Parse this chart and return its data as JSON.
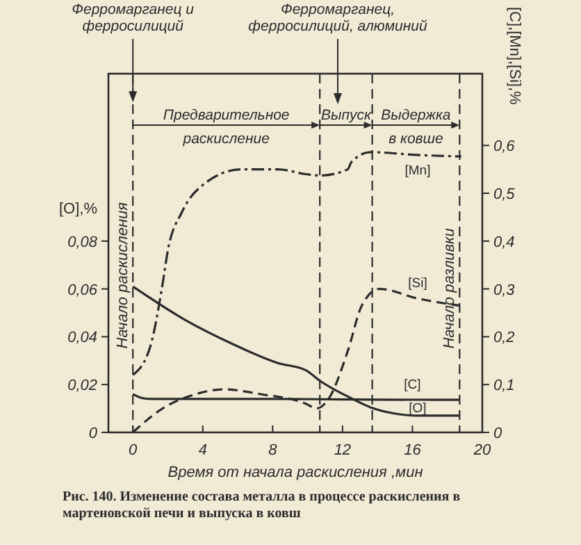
{
  "chart_data": {
    "type": "line",
    "xlabel": "Время от начала раскисления ,мин",
    "ylabel": "[O],%",
    "y2label": "[C],[Mn],[Si],%",
    "xlim": [
      -1.4,
      20
    ],
    "xticks": [
      0,
      4,
      8,
      12,
      16,
      20
    ],
    "ylim": [
      0,
      0.15
    ],
    "yticks": [
      0,
      {
        "value": 0.02,
        "label": "0,02"
      },
      {
        "value": 0.04,
        "label": "0,04"
      },
      {
        "value": 0.06,
        "label": "0,06"
      },
      {
        "value": 0.08,
        "label": "0,08"
      }
    ],
    "y2lim": [
      0,
      0.75
    ],
    "y2ticks": [
      0,
      {
        "value": 0.1,
        "label": "0,1"
      },
      {
        "value": 0.2,
        "label": "0,2"
      },
      {
        "value": 0.3,
        "label": "0,3"
      },
      {
        "value": 0.4,
        "label": "0,4"
      },
      {
        "value": 0.5,
        "label": "0,5"
      },
      {
        "value": 0.6,
        "label": "0,6"
      }
    ],
    "series": [
      {
        "name": "[Mn]",
        "color": "#2b2b2b",
        "axis": "y2",
        "line_style": "dashdot",
        "x": [
          0,
          1,
          1.7,
          2,
          2.8,
          4.1,
          6.2,
          7.3,
          8.3,
          9.9,
          10.7,
          12.3,
          12.5,
          13.6,
          16.3,
          18.8
        ],
        "values": [
          0.12,
          0.18,
          0.31,
          0.38,
          0.46,
          0.52,
          0.55,
          0.55,
          0.55,
          0.54,
          0.537,
          0.55,
          0.565,
          0.586,
          0.58,
          0.577
        ]
      },
      {
        "name": "[Si]",
        "color": "#2b2b2b",
        "axis": "y2",
        "line_style": "dashed",
        "x": [
          0,
          1.7,
          3.6,
          5.2,
          7.3,
          9.9,
          10.5,
          11.2,
          12.3,
          13.1,
          14.1,
          16.3,
          18.7
        ],
        "values": [
          0,
          0.05,
          0.08,
          0.09,
          0.08,
          0.06,
          0.05,
          0.07,
          0.17,
          0.265,
          0.3,
          0.28,
          0.265
        ]
      },
      {
        "name": "[C]",
        "color": "#2b2b2b",
        "axis": "y2",
        "line_style": "solid",
        "x": [
          0,
          0.5,
          1,
          4,
          8,
          12,
          16,
          18.7
        ],
        "values": [
          0.08,
          0.072,
          0.07,
          0.07,
          0.07,
          0.069,
          0.068,
          0.068
        ]
      },
      {
        "name": "[O]",
        "color": "#2b2b2b",
        "line_style": "solid",
        "x": [
          0,
          3,
          5.7,
          8.3,
          9.9,
          10.7,
          12.3,
          13.6,
          14.9,
          16.3,
          18.7
        ],
        "values": [
          0.061,
          0.047,
          0.037,
          0.029,
          0.026,
          0.0216,
          0.015,
          0.0105,
          0.008,
          0.007,
          0.007
        ]
      }
    ],
    "ref_lines": [
      {
        "axis": "x",
        "value": 0,
        "label": "Начало раскисления",
        "line_style": "dashed"
      },
      {
        "axis": "x",
        "value": 10.7,
        "line_style": "dashed"
      },
      {
        "axis": "x",
        "value": 13.7,
        "line_style": "dashed"
      },
      {
        "axis": "x",
        "value": 18.7,
        "label": "Начало разливки",
        "line_style": "dashed"
      }
    ],
    "annotations": [
      {
        "text": "Ферромарганец и ферросилиций",
        "x": 0,
        "y": 0.138
      },
      "Ферромарганец, ферросилиций, алюминий",
      "Предварительное раскисление",
      "Выпуск",
      "Выдержка в ковше",
      "Рис. 140. Изменение состава металла в процессе раскисления в мартеновской печи и выпуска в ковш"
    ]
  }
}
